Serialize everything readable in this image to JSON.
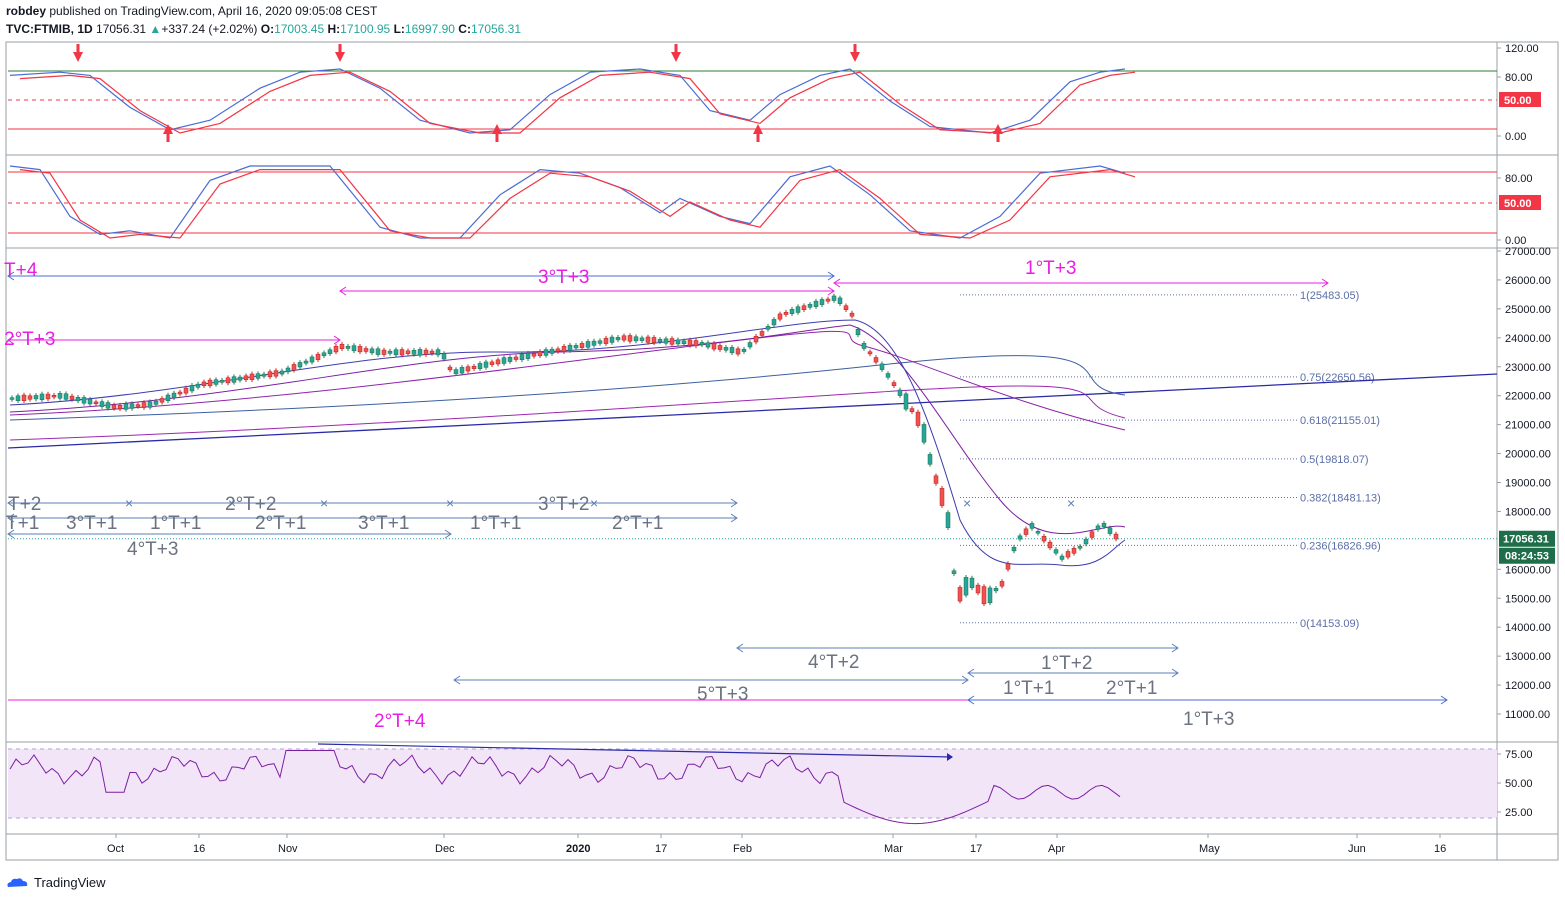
{
  "header": {
    "publisher": "robdey",
    "published_on": "published on TradingView.com, April 16, 2020 09:05:08 CEST",
    "symbol": "TVC:FTMIB, 1D",
    "last": "17056.31",
    "change": "+337.24 (+2.02%)",
    "o_label": "O:",
    "o": "17003.45",
    "h_label": "H:",
    "h": "17100.95",
    "l_label": "L:",
    "l": "16997.90",
    "c_label": "C:",
    "c": "17056.31"
  },
  "footer": {
    "brand": "TradingView"
  },
  "colors": {
    "up": "#26a69a",
    "down": "#ef5350",
    "blue": "#2962ff",
    "red": "#f23645",
    "magenta": "#e91ee3",
    "steel": "#5b7fb5",
    "navy": "#2a2aa8",
    "rsi_fill": "#f3e5f8",
    "rsi_line": "#7b1fa2"
  },
  "x_axis": {
    "labels": [
      "Oct",
      "16",
      "Nov",
      "Dec",
      "2020",
      "17",
      "Feb",
      "Mar",
      "17",
      "Apr",
      "May",
      "Jun",
      "16"
    ]
  },
  "panes": {
    "stoch1": {
      "ticks": [
        "120.00",
        "80.00",
        "0.00"
      ],
      "badge": "50.00"
    },
    "stoch2": {
      "ticks": [
        "80.00",
        "0.00"
      ],
      "badge": "50.00"
    },
    "price": {
      "ticks": [
        "27000.00",
        "26000.00",
        "25000.00",
        "24000.00",
        "23000.00",
        "22000.00",
        "21000.00",
        "20000.00",
        "19000.00",
        "18000.00",
        "16000.00",
        "15000.00",
        "14000.00",
        "13000.00",
        "12000.00",
        "11000.00"
      ],
      "last_badge": "17056.31",
      "countdown": "08:24:53",
      "fib_labels": [
        "1(25483.05)",
        "0.75(22650.56)",
        "0.618(21155.01)",
        "0.5(19818.07)",
        "0.382(18481.13)",
        "0.236(16826.96)",
        "0(14153.09)"
      ]
    },
    "rsi": {
      "ticks": [
        "75.00",
        "50.00",
        "25.00"
      ]
    }
  },
  "cycle_labels_magenta": [
    "T+4",
    "3°T+3",
    "1°T+3",
    "2°T+3",
    "2°T+4"
  ],
  "cycle_labels_gray": [
    "T+2",
    "2°T+2",
    "3°T+2",
    "T+1",
    "3°T+1",
    "1°T+1",
    "2°T+1",
    "3°T+1",
    "1°T+1",
    "2°T+1",
    "4°T+3",
    "4°T+2",
    "1°T+2",
    "5°T+3",
    "1°T+1",
    "2°T+1",
    "1°T+3"
  ],
  "chart_data": {
    "type": "candlestick",
    "title": "TVC:FTMIB, 1D",
    "period": "Sep 2019 – Apr 16 2020",
    "series": [
      {
        "name": "FTMIB",
        "close_last": 17056.31,
        "open": 17003.45,
        "high": 17100.95,
        "low": 16997.9
      }
    ],
    "price_range": [
      10500,
      27200
    ],
    "fibonacci": [
      {
        "level": "1",
        "value": 25483.05
      },
      {
        "level": "0.75",
        "value": 22650.56
      },
      {
        "level": "0.618",
        "value": 21155.01
      },
      {
        "level": "0.5",
        "value": 19818.07
      },
      {
        "level": "0.382",
        "value": 18481.13
      },
      {
        "level": "0.236",
        "value": 16826.96
      },
      {
        "level": "0",
        "value": 14153.09
      }
    ],
    "indicators": [
      "Stochastic",
      "Stochastic",
      "RSI"
    ]
  }
}
